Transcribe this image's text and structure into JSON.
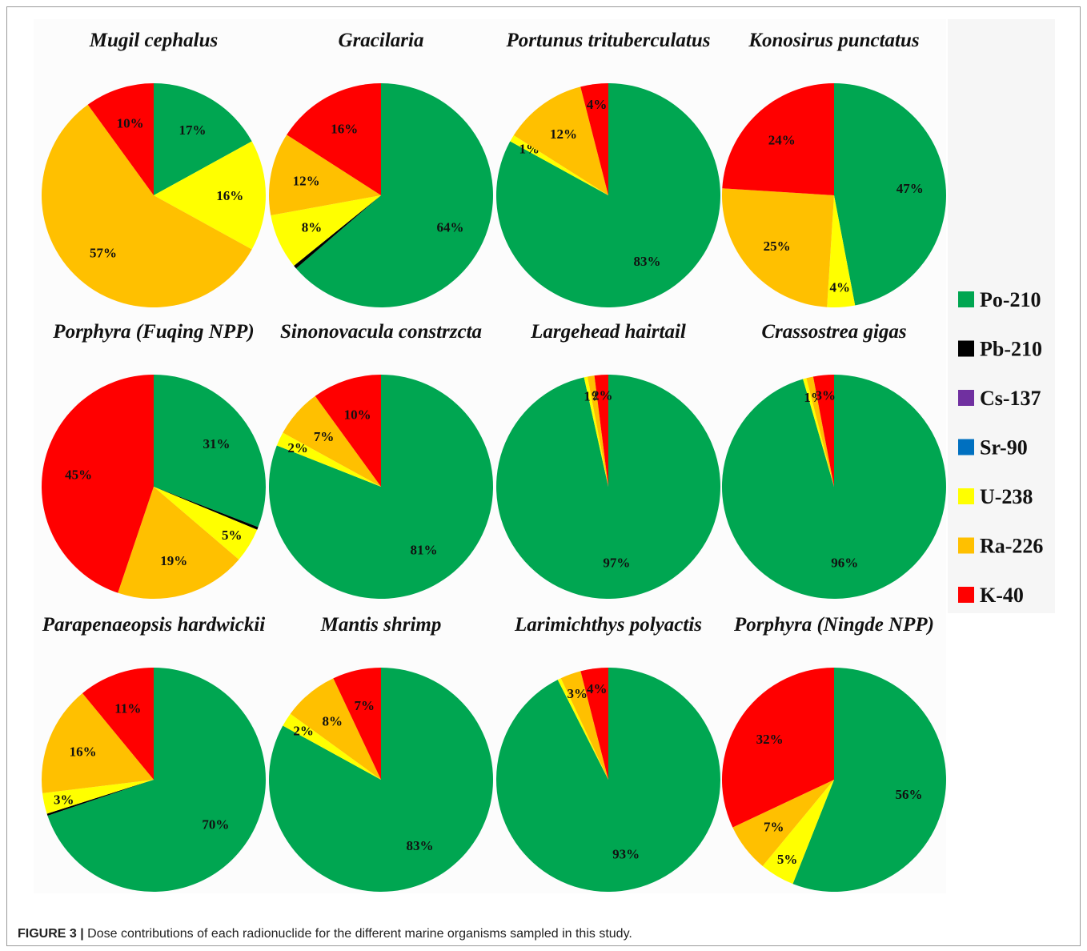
{
  "caption": {
    "label": "FIGURE 3 |",
    "text": " Dose contributions of each radionuclide for the different marine organisms sampled in this study."
  },
  "legend": [
    {
      "name": "Po-210",
      "color": "#00A651"
    },
    {
      "name": "Pb-210",
      "color": "#000000"
    },
    {
      "name": "Cs-137",
      "color": "#7030A0"
    },
    {
      "name": "Sr-90",
      "color": "#0070C0"
    },
    {
      "name": "U-238",
      "color": "#FFFF00"
    },
    {
      "name": "Ra-226",
      "color": "#FFC000"
    },
    {
      "name": "K-40",
      "color": "#FF0000"
    }
  ],
  "chart_data": [
    {
      "type": "pie",
      "title": "Mugil cephalus",
      "slices": [
        {
          "name": "Po-210",
          "value": 17,
          "label": "17%"
        },
        {
          "name": "U-238",
          "value": 16,
          "label": "16%"
        },
        {
          "name": "Ra-226",
          "value": 57,
          "label": "57%"
        },
        {
          "name": "K-40",
          "value": 10,
          "label": "10%"
        }
      ]
    },
    {
      "type": "pie",
      "title": "Gracilaria",
      "slices": [
        {
          "name": "Po-210",
          "value": 64,
          "label": "64%"
        },
        {
          "name": "Pb-210",
          "value": 0.5,
          "label": ""
        },
        {
          "name": "U-238",
          "value": 8,
          "label": "8%"
        },
        {
          "name": "Ra-226",
          "value": 12,
          "label": "12%"
        },
        {
          "name": "K-40",
          "value": 16,
          "label": "16%"
        }
      ]
    },
    {
      "type": "pie",
      "title": "Portunus trituberculatus",
      "slices": [
        {
          "name": "Po-210",
          "value": 83,
          "label": "83%"
        },
        {
          "name": "U-238",
          "value": 1,
          "label": "1%"
        },
        {
          "name": "Ra-226",
          "value": 12,
          "label": "12%"
        },
        {
          "name": "K-40",
          "value": 4,
          "label": "4%"
        }
      ]
    },
    {
      "type": "pie",
      "title": "Konosirus punctatus",
      "slices": [
        {
          "name": "Po-210",
          "value": 47,
          "label": "47%"
        },
        {
          "name": "U-238",
          "value": 4,
          "label": "4%"
        },
        {
          "name": "Ra-226",
          "value": 25,
          "label": "25%"
        },
        {
          "name": "K-40",
          "value": 24,
          "label": "24%"
        }
      ]
    },
    {
      "type": "pie",
      "title": "Porphyra (Fuqing NPP)",
      "slices": [
        {
          "name": "Po-210",
          "value": 31,
          "label": "31%"
        },
        {
          "name": "Pb-210",
          "value": 0.4,
          "label": ""
        },
        {
          "name": "U-238",
          "value": 5,
          "label": "5%"
        },
        {
          "name": "Ra-226",
          "value": 19,
          "label": "19%"
        },
        {
          "name": "K-40",
          "value": 45,
          "label": "45%"
        }
      ]
    },
    {
      "type": "pie",
      "title": "Sinonovacula constrzcta",
      "slices": [
        {
          "name": "Po-210",
          "value": 81,
          "label": "81%"
        },
        {
          "name": "U-238",
          "value": 2,
          "label": "2%"
        },
        {
          "name": "Ra-226",
          "value": 7,
          "label": "7%"
        },
        {
          "name": "K-40",
          "value": 10,
          "label": "10%"
        }
      ]
    },
    {
      "type": "pie",
      "title": "Largehead hairtail",
      "slices": [
        {
          "name": "Po-210",
          "value": 97,
          "label": "97%"
        },
        {
          "name": "U-238",
          "value": 0.5,
          "label": ""
        },
        {
          "name": "Ra-226",
          "value": 1,
          "label": "1%"
        },
        {
          "name": "K-40",
          "value": 2,
          "label": "2%"
        }
      ]
    },
    {
      "type": "pie",
      "title": "Crassostrea gigas",
      "slices": [
        {
          "name": "Po-210",
          "value": 96,
          "label": "96%"
        },
        {
          "name": "U-238",
          "value": 0.5,
          "label": ""
        },
        {
          "name": "Ra-226",
          "value": 1,
          "label": "1%"
        },
        {
          "name": "K-40",
          "value": 3,
          "label": "3%"
        }
      ]
    },
    {
      "type": "pie",
      "title": "Parapenaeopsis hardwickii",
      "slices": [
        {
          "name": "Po-210",
          "value": 70,
          "label": "70%"
        },
        {
          "name": "Pb-210",
          "value": 0.3,
          "label": ""
        },
        {
          "name": "U-238",
          "value": 3,
          "label": "3%"
        },
        {
          "name": "Ra-226",
          "value": 16,
          "label": "16%"
        },
        {
          "name": "K-40",
          "value": 11,
          "label": "11%"
        }
      ]
    },
    {
      "type": "pie",
      "title": "Mantis shrimp",
      "slices": [
        {
          "name": "Po-210",
          "value": 83,
          "label": "83%"
        },
        {
          "name": "U-238",
          "value": 2,
          "label": "2%"
        },
        {
          "name": "Ra-226",
          "value": 8,
          "label": "8%"
        },
        {
          "name": "K-40",
          "value": 7,
          "label": "7%"
        }
      ]
    },
    {
      "type": "pie",
      "title": "Larimichthys polyactis",
      "slices": [
        {
          "name": "Po-210",
          "value": 93,
          "label": "93%"
        },
        {
          "name": "U-238",
          "value": 0.5,
          "label": ""
        },
        {
          "name": "Ra-226",
          "value": 3,
          "label": "3%"
        },
        {
          "name": "K-40",
          "value": 4,
          "label": "4%"
        }
      ]
    },
    {
      "type": "pie",
      "title": "Porphyra (Ningde NPP)",
      "slices": [
        {
          "name": "Po-210",
          "value": 56,
          "label": "56%"
        },
        {
          "name": "U-238",
          "value": 5,
          "label": "5%"
        },
        {
          "name": "Ra-226",
          "value": 7,
          "label": "7%"
        },
        {
          "name": "K-40",
          "value": 32,
          "label": "32%"
        }
      ]
    }
  ]
}
